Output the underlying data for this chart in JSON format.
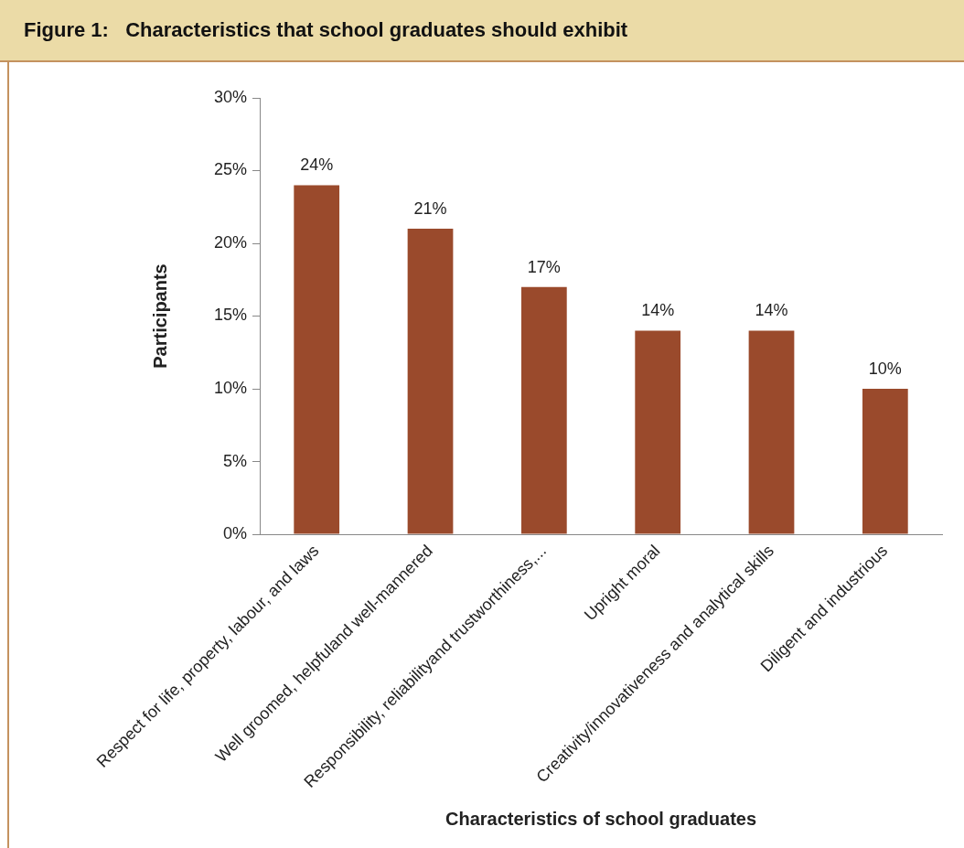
{
  "chart_data": {
    "type": "bar",
    "title": "Figure 1:   Characteristics that school graduates should exhibit",
    "xlabel": "Characteristics of school graduates",
    "ylabel": "Participants",
    "categories": [
      "Respect for life, property, labour, and laws",
      "Well groomed, helpfuland well-mannered",
      "Responsibility, reliabilityand trustworthiness,...",
      "Upright moral",
      "Creativity/innovativeness and analytical skills",
      "Diligent and industrious"
    ],
    "values": [
      24,
      21,
      17,
      14,
      14,
      10
    ],
    "value_labels": [
      "24%",
      "21%",
      "17%",
      "14%",
      "14%",
      "10%"
    ],
    "color": "#9a4a2c",
    "ylim": [
      0,
      30
    ],
    "yticks": [
      {
        "value": 0,
        "label": "0%"
      },
      {
        "value": 5,
        "label": "5%"
      },
      {
        "value": 10,
        "label": "10%"
      },
      {
        "value": 15,
        "label": "15%"
      },
      {
        "value": 20,
        "label": "20%"
      },
      {
        "value": 25,
        "label": "25%"
      },
      {
        "value": 30,
        "label": "30%"
      }
    ],
    "grid": false,
    "legend": false
  }
}
